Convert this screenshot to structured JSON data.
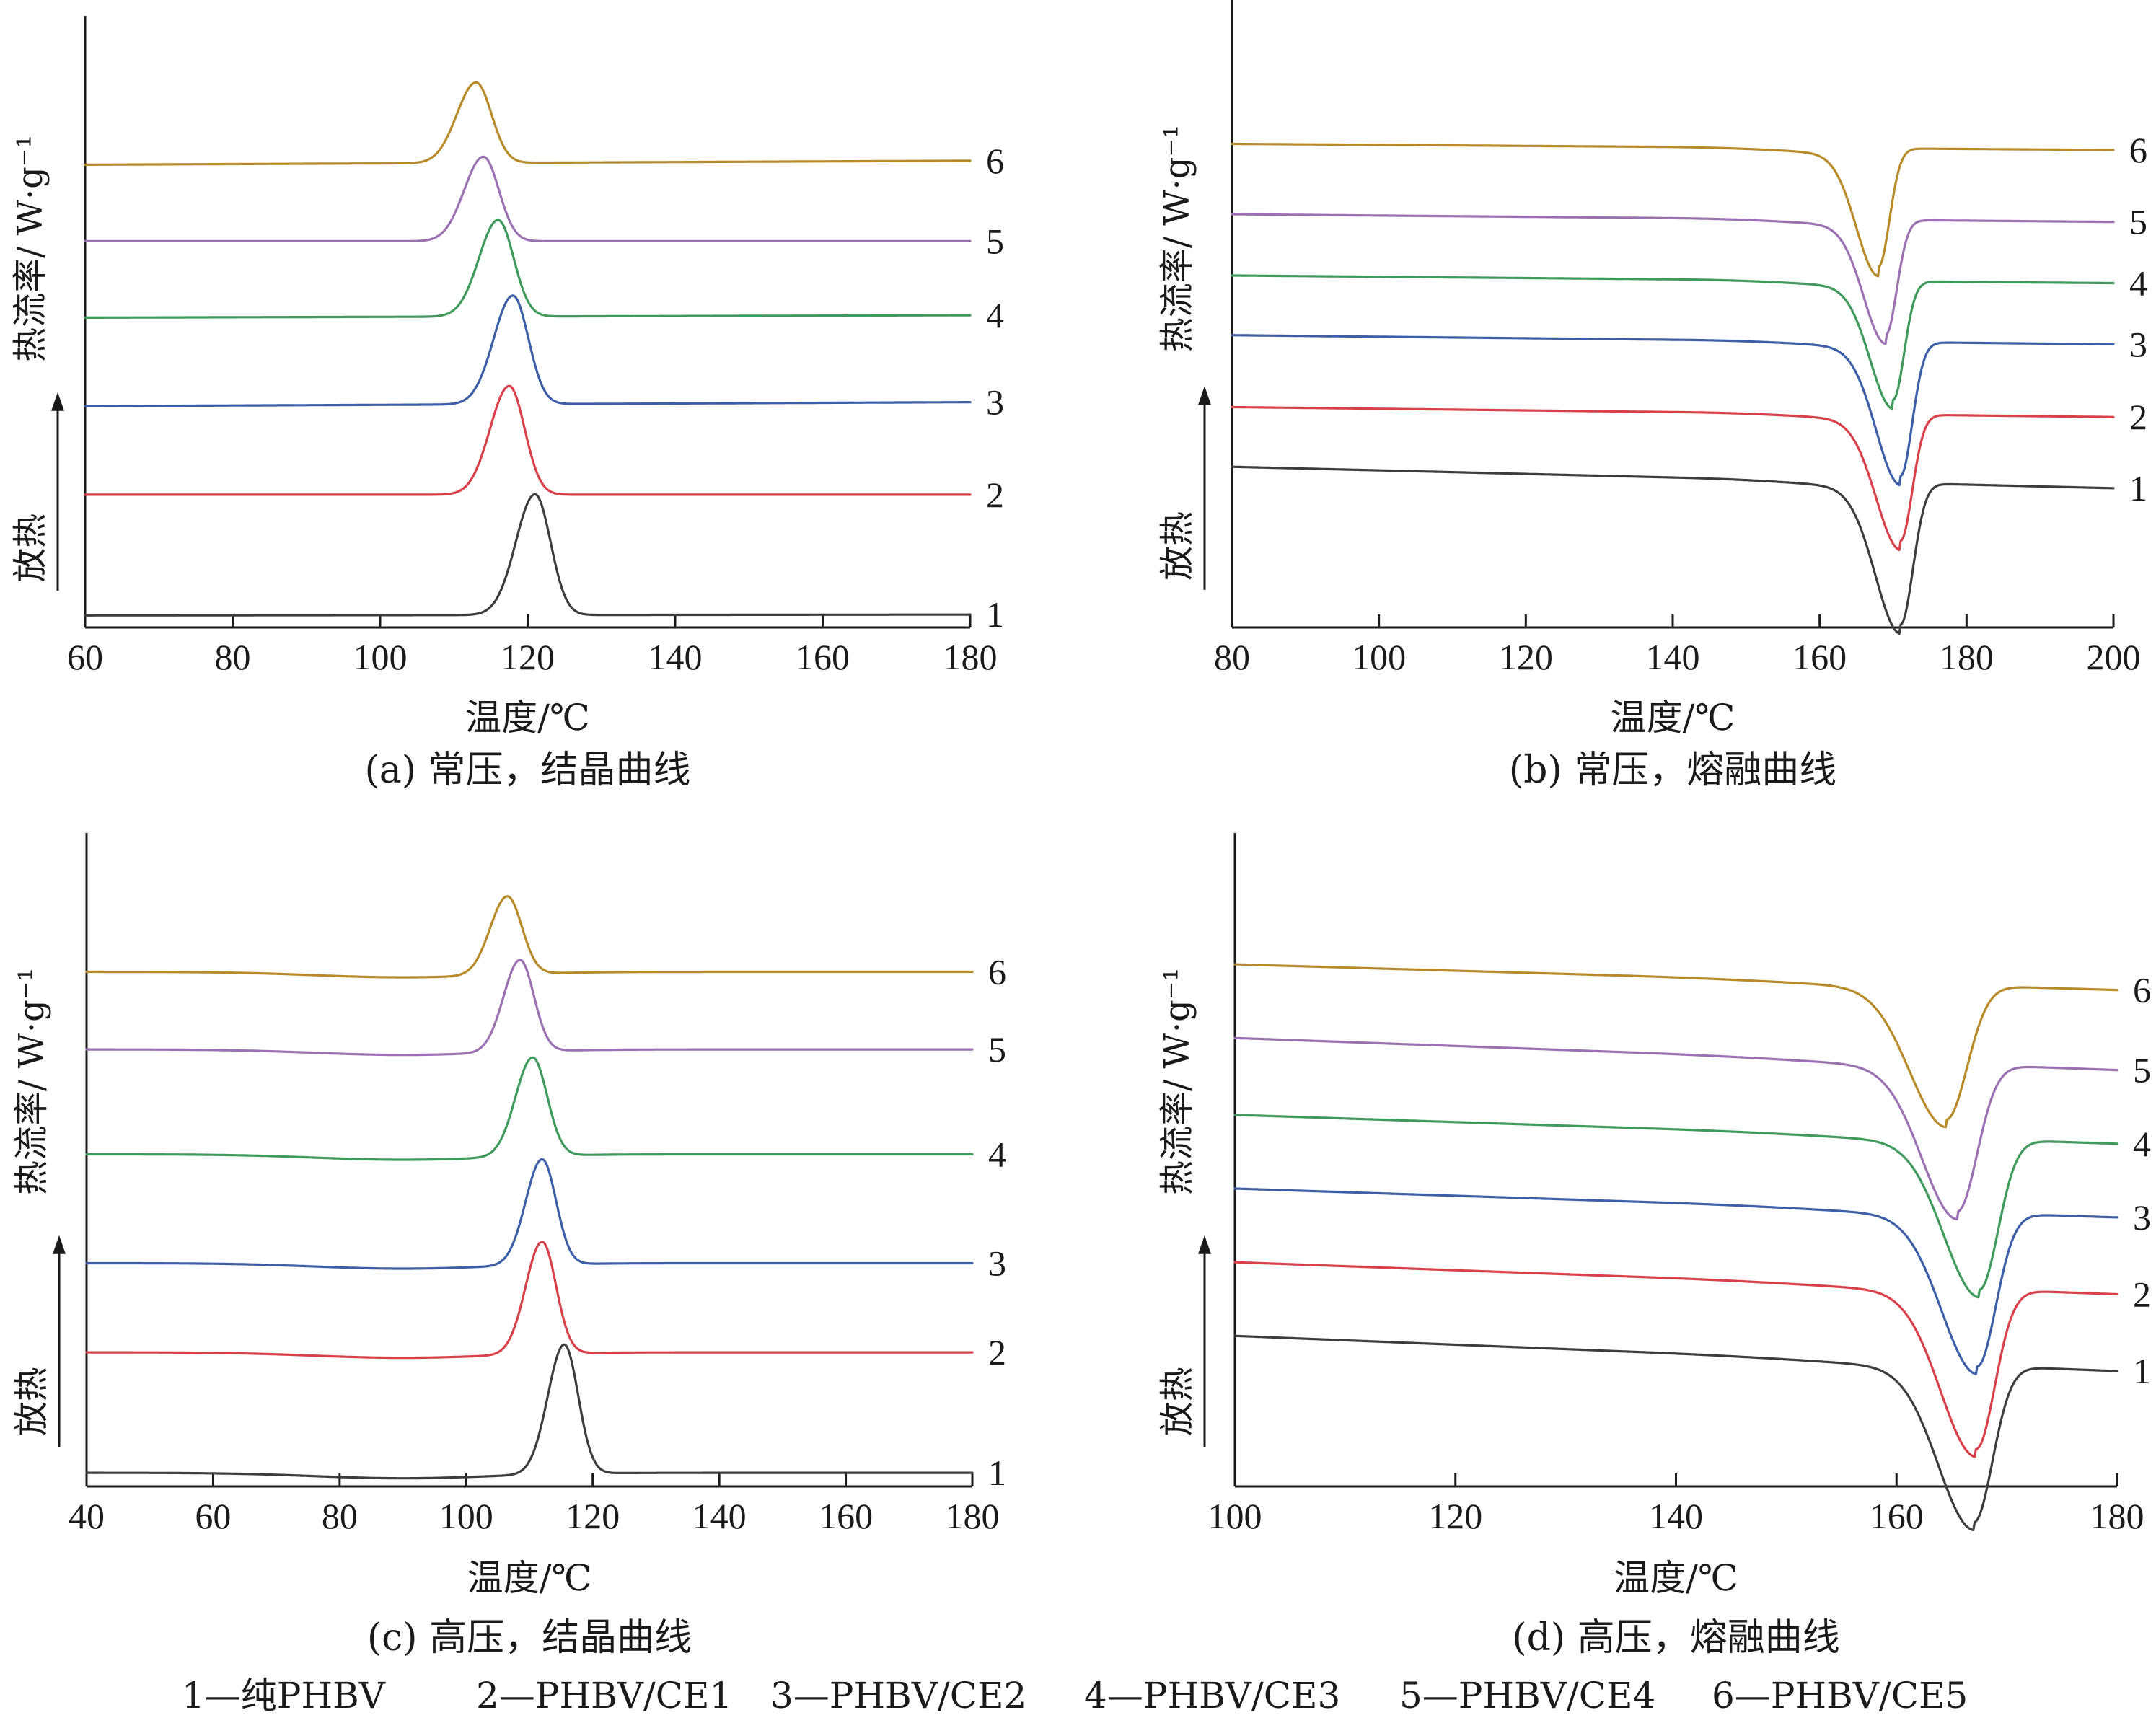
{
  "colors": {
    "s1": "#3d3d3d",
    "s2": "#d9414a",
    "s3": "#3d5fa7",
    "s4": "#3f9a5c",
    "s5": "#9b71b3",
    "s6": "#b88a2a"
  },
  "legend": [
    "1—纯PHBV",
    "2—PHBV/CE1",
    "3—PHBV/CE2",
    "4—PHBV/CE3",
    "5—PHBV/CE4",
    "6—PHBV/CE5"
  ],
  "chart_data": [
    {
      "id": "a",
      "type": "line",
      "caption": "(a) 常压，结晶曲线",
      "xlabel": "温度/℃",
      "ylabel": "热流率/ W·g⁻¹",
      "exo_label": "放热",
      "xlim": [
        60,
        180
      ],
      "xticks": [
        60,
        80,
        100,
        120,
        140,
        160,
        180
      ],
      "peak_direction": "up",
      "series": [
        {
          "label": "1",
          "color_key": "s1",
          "baseline_start": 0.15,
          "baseline_end": 0.16,
          "peak_x": 121,
          "peak_height": 1.5,
          "width_left": 2.6,
          "width_right": 2.1
        },
        {
          "label": "2",
          "color_key": "s2",
          "baseline_start": 1.65,
          "baseline_end": 1.65,
          "peak_x": 117.5,
          "peak_height": 1.35,
          "width_left": 2.6,
          "width_right": 2.1
        },
        {
          "label": "3",
          "color_key": "s3",
          "baseline_start": 2.75,
          "baseline_end": 2.8,
          "peak_x": 118,
          "peak_height": 1.35,
          "width_left": 2.6,
          "width_right": 2.1
        },
        {
          "label": "4",
          "color_key": "s4",
          "baseline_start": 3.85,
          "baseline_end": 3.88,
          "peak_x": 116,
          "peak_height": 1.2,
          "width_left": 2.6,
          "width_right": 2.1
        },
        {
          "label": "5",
          "color_key": "s5",
          "baseline_start": 4.8,
          "baseline_end": 4.8,
          "peak_x": 114,
          "peak_height": 1.05,
          "width_left": 2.6,
          "width_right": 2.1
        },
        {
          "label": "6",
          "color_key": "s6",
          "baseline_start": 5.75,
          "baseline_end": 5.8,
          "peak_x": 113,
          "peak_height": 1.0,
          "width_left": 2.6,
          "width_right": 2.1
        }
      ]
    },
    {
      "id": "b",
      "type": "line",
      "caption": "(b) 常压，熔融曲线",
      "xlabel": "温度/℃",
      "ylabel": "热流率/ W·g⁻¹",
      "exo_label": "放热",
      "xlim": [
        80,
        200
      ],
      "xticks": [
        80,
        100,
        120,
        140,
        160,
        180,
        200
      ],
      "peak_direction": "down",
      "series": [
        {
          "label": "1",
          "color_key": "s1",
          "baseline_start": 2.1,
          "baseline_end": 1.82,
          "peak_x": 171,
          "peak_height": 1.85,
          "width_left": 3.4,
          "width_right": 1.7
        },
        {
          "label": "2",
          "color_key": "s2",
          "baseline_start": 2.88,
          "baseline_end": 2.75,
          "peak_x": 171,
          "peak_height": 1.65,
          "width_left": 3.3,
          "width_right": 1.6
        },
        {
          "label": "3",
          "color_key": "s3",
          "baseline_start": 3.82,
          "baseline_end": 3.7,
          "peak_x": 171,
          "peak_height": 1.75,
          "width_left": 3.3,
          "width_right": 1.6
        },
        {
          "label": "4",
          "color_key": "s4",
          "baseline_start": 4.6,
          "baseline_end": 4.5,
          "peak_x": 170,
          "peak_height": 1.55,
          "width_left": 3.1,
          "width_right": 1.5
        },
        {
          "label": "5",
          "color_key": "s5",
          "baseline_start": 5.4,
          "baseline_end": 5.3,
          "peak_x": 169,
          "peak_height": 1.5,
          "width_left": 3.0,
          "width_right": 1.5
        },
        {
          "label": "6",
          "color_key": "s6",
          "baseline_start": 6.32,
          "baseline_end": 6.24,
          "peak_x": 168,
          "peak_height": 1.55,
          "width_left": 3.0,
          "width_right": 1.5
        }
      ]
    },
    {
      "id": "c",
      "type": "line",
      "caption": "(c) 高压，结晶曲线",
      "xlabel": "温度/℃",
      "ylabel": "热流率/ W·g⁻¹",
      "exo_label": "放热",
      "xlim": [
        40,
        180
      ],
      "xticks": [
        40,
        60,
        80,
        100,
        120,
        140,
        160,
        180
      ],
      "peak_direction": "up",
      "broad_dip": {
        "center": 90,
        "width": 14,
        "depth": 0.08
      },
      "series": [
        {
          "label": "1",
          "color_key": "s1",
          "baseline_start": 0.2,
          "baseline_end": 0.2,
          "peak_x": 115.5,
          "peak_height": 1.9,
          "width_left": 2.6,
          "width_right": 2.2
        },
        {
          "label": "2",
          "color_key": "s2",
          "baseline_start": 1.97,
          "baseline_end": 1.97,
          "peak_x": 112,
          "peak_height": 1.65,
          "width_left": 2.6,
          "width_right": 2.2
        },
        {
          "label": "3",
          "color_key": "s3",
          "baseline_start": 3.28,
          "baseline_end": 3.28,
          "peak_x": 112,
          "peak_height": 1.55,
          "width_left": 2.6,
          "width_right": 2.2
        },
        {
          "label": "4",
          "color_key": "s4",
          "baseline_start": 4.88,
          "baseline_end": 4.88,
          "peak_x": 110.5,
          "peak_height": 1.45,
          "width_left": 2.7,
          "width_right": 2.3
        },
        {
          "label": "5",
          "color_key": "s5",
          "baseline_start": 6.42,
          "baseline_end": 6.42,
          "peak_x": 108.5,
          "peak_height": 1.35,
          "width_left": 2.6,
          "width_right": 2.2
        },
        {
          "label": "6",
          "color_key": "s6",
          "baseline_start": 7.56,
          "baseline_end": 7.56,
          "peak_x": 106.5,
          "peak_height": 1.15,
          "width_left": 2.7,
          "width_right": 2.3
        }
      ]
    },
    {
      "id": "d",
      "type": "line",
      "caption": "(d) 高压，熔融曲线",
      "xlabel": "温度/℃",
      "ylabel": "热流率/ W·g⁻¹",
      "exo_label": "放热",
      "xlim": [
        100,
        180
      ],
      "xticks": [
        100,
        120,
        140,
        160,
        180
      ],
      "peak_direction": "down",
      "series": [
        {
          "label": "1",
          "color_key": "s1",
          "baseline_start": 2.35,
          "baseline_end": 1.8,
          "peak_x": 167,
          "peak_height": 2.45,
          "width_left": 3.2,
          "width_right": 1.7
        },
        {
          "label": "2",
          "color_key": "s2",
          "baseline_start": 3.5,
          "baseline_end": 3.0,
          "peak_x": 167.2,
          "peak_height": 2.5,
          "width_left": 3.2,
          "width_right": 1.7
        },
        {
          "label": "3",
          "color_key": "s3",
          "baseline_start": 4.65,
          "baseline_end": 4.2,
          "peak_x": 167.3,
          "peak_height": 2.4,
          "width_left": 3.2,
          "width_right": 1.7
        },
        {
          "label": "4",
          "color_key": "s4",
          "baseline_start": 5.8,
          "baseline_end": 5.35,
          "peak_x": 167.5,
          "peak_height": 2.35,
          "width_left": 3.2,
          "width_right": 1.7
        },
        {
          "label": "5",
          "color_key": "s5",
          "baseline_start": 7.0,
          "baseline_end": 6.5,
          "peak_x": 165.5,
          "peak_height": 2.3,
          "width_left": 3.2,
          "width_right": 1.8
        },
        {
          "label": "6",
          "color_key": "s6",
          "baseline_start": 8.15,
          "baseline_end": 7.75,
          "peak_x": 164.5,
          "peak_height": 2.1,
          "width_left": 3.3,
          "width_right": 1.9
        }
      ]
    }
  ]
}
